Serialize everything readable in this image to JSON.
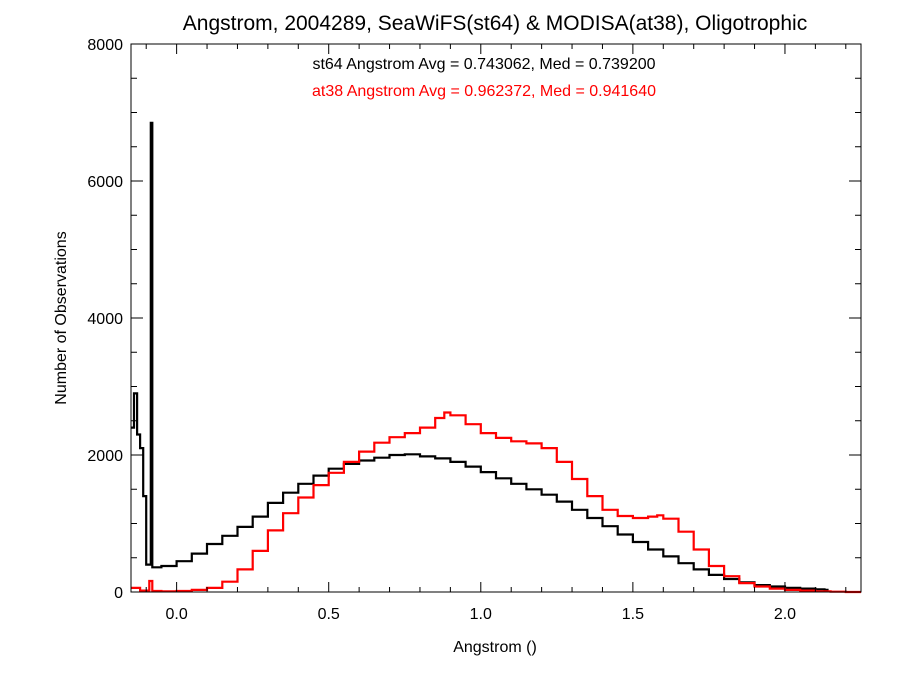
{
  "chart_data": {
    "type": "histogram",
    "title": "Angstrom, 2004289, SeaWiFS(st64) & MODISA(at38), Oligotrophic",
    "xlabel": "Angstrom ()",
    "ylabel": "Number of Observations",
    "xlim": [
      -0.15,
      2.25
    ],
    "ylim": [
      0,
      8000
    ],
    "x_ticks": [
      0.0,
      0.5,
      1.0,
      1.5,
      2.0
    ],
    "x_tick_labels": [
      "0.0",
      "0.5",
      "1.0",
      "1.5",
      "2.0"
    ],
    "y_ticks": [
      0,
      2000,
      4000,
      6000,
      8000
    ],
    "y_tick_labels": [
      "0",
      "2000",
      "4000",
      "6000",
      "8000"
    ],
    "grid": false,
    "annotations": [
      {
        "text": "st64 Angstrom Avg = 0.743062, Med = 0.739200",
        "color": "#000000"
      },
      {
        "text": "at38 Angstrom Avg = 0.962372, Med = 0.941640",
        "color": "#ff0000"
      }
    ],
    "series": [
      {
        "color": "#000000",
        "points": [
          [
            -0.15,
            2400
          ],
          [
            -0.14,
            2900
          ],
          [
            -0.13,
            2300
          ],
          [
            -0.12,
            2100
          ],
          [
            -0.11,
            1400
          ],
          [
            -0.1,
            400
          ],
          [
            -0.085,
            6850
          ],
          [
            -0.08,
            360
          ],
          [
            -0.05,
            380
          ],
          [
            0.0,
            450
          ],
          [
            0.05,
            560
          ],
          [
            0.1,
            700
          ],
          [
            0.15,
            820
          ],
          [
            0.2,
            950
          ],
          [
            0.25,
            1100
          ],
          [
            0.3,
            1300
          ],
          [
            0.35,
            1450
          ],
          [
            0.4,
            1580
          ],
          [
            0.45,
            1700
          ],
          [
            0.5,
            1800
          ],
          [
            0.55,
            1870
          ],
          [
            0.6,
            1920
          ],
          [
            0.65,
            1960
          ],
          [
            0.7,
            2000
          ],
          [
            0.75,
            2010
          ],
          [
            0.8,
            1980
          ],
          [
            0.85,
            1950
          ],
          [
            0.9,
            1900
          ],
          [
            0.95,
            1830
          ],
          [
            1.0,
            1750
          ],
          [
            1.05,
            1660
          ],
          [
            1.1,
            1580
          ],
          [
            1.15,
            1500
          ],
          [
            1.2,
            1420
          ],
          [
            1.25,
            1320
          ],
          [
            1.3,
            1200
          ],
          [
            1.35,
            1080
          ],
          [
            1.4,
            960
          ],
          [
            1.45,
            840
          ],
          [
            1.5,
            730
          ],
          [
            1.55,
            620
          ],
          [
            1.6,
            520
          ],
          [
            1.65,
            420
          ],
          [
            1.7,
            330
          ],
          [
            1.75,
            250
          ],
          [
            1.8,
            190
          ],
          [
            1.85,
            140
          ],
          [
            1.9,
            100
          ],
          [
            1.95,
            80
          ],
          [
            2.0,
            60
          ],
          [
            2.05,
            50
          ],
          [
            2.1,
            40
          ],
          [
            2.13,
            30
          ],
          [
            2.14,
            0
          ]
        ]
      },
      {
        "color": "#ff0000",
        "points": [
          [
            -0.15,
            60
          ],
          [
            -0.12,
            20
          ],
          [
            -0.09,
            160
          ],
          [
            -0.08,
            15
          ],
          [
            -0.05,
            10
          ],
          [
            0.0,
            15
          ],
          [
            0.05,
            30
          ],
          [
            0.1,
            60
          ],
          [
            0.15,
            150
          ],
          [
            0.2,
            330
          ],
          [
            0.25,
            600
          ],
          [
            0.3,
            900
          ],
          [
            0.35,
            1150
          ],
          [
            0.4,
            1380
          ],
          [
            0.45,
            1560
          ],
          [
            0.5,
            1740
          ],
          [
            0.55,
            1900
          ],
          [
            0.6,
            2050
          ],
          [
            0.65,
            2180
          ],
          [
            0.7,
            2260
          ],
          [
            0.75,
            2320
          ],
          [
            0.8,
            2400
          ],
          [
            0.85,
            2540
          ],
          [
            0.88,
            2620
          ],
          [
            0.9,
            2580
          ],
          [
            0.95,
            2450
          ],
          [
            1.0,
            2320
          ],
          [
            1.05,
            2250
          ],
          [
            1.1,
            2200
          ],
          [
            1.15,
            2170
          ],
          [
            1.2,
            2100
          ],
          [
            1.25,
            1900
          ],
          [
            1.3,
            1650
          ],
          [
            1.35,
            1400
          ],
          [
            1.4,
            1200
          ],
          [
            1.45,
            1110
          ],
          [
            1.5,
            1080
          ],
          [
            1.55,
            1100
          ],
          [
            1.58,
            1120
          ],
          [
            1.6,
            1070
          ],
          [
            1.65,
            880
          ],
          [
            1.7,
            620
          ],
          [
            1.75,
            380
          ],
          [
            1.8,
            230
          ],
          [
            1.85,
            130
          ],
          [
            1.9,
            80
          ],
          [
            1.95,
            50
          ],
          [
            2.0,
            30
          ],
          [
            2.05,
            20
          ],
          [
            2.1,
            10
          ],
          [
            2.15,
            5
          ],
          [
            2.2,
            0
          ],
          [
            2.25,
            0
          ]
        ]
      }
    ]
  }
}
